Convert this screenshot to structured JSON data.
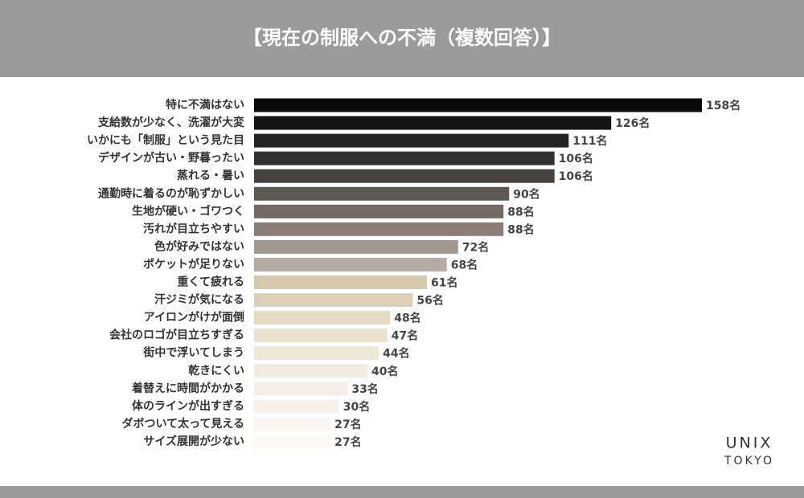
{
  "chart_data": {
    "type": "bar",
    "orientation": "horizontal",
    "title": "【現在の制服への不満（複数回答）】",
    "categories": [
      "特に不満はない",
      "支給数が少なく、洗濯が大変",
      "いかにも「制服」という見た目",
      "デザインが古い・野暮ったい",
      "蒸れる・暑い",
      "通勤時に着るのが恥ずかしい",
      "生地が硬い・ゴワつく",
      "汚れが目立ちやすい",
      "色が好みではない",
      "ポケットが足りない",
      "重くて疲れる",
      "汗ジミが気になる",
      "アイロンがけが面倒",
      "会社のロゴが目立ちすぎる",
      "街中で浮いてしまう",
      "乾きにくい",
      "着替えに時間がかかる",
      "体のラインが出すぎる",
      "ダボついて太って見える",
      "サイズ展開が少ない"
    ],
    "values": [
      158,
      126,
      111,
      106,
      106,
      90,
      88,
      88,
      72,
      68,
      61,
      56,
      48,
      47,
      44,
      40,
      33,
      30,
      27,
      27
    ],
    "value_labels": [
      "158名",
      "126名",
      "111名",
      "106名",
      "106名",
      "90名",
      "88名",
      "88名",
      "72名",
      "68名",
      "61名",
      "56名",
      "48名",
      "47名",
      "44名",
      "40名",
      "33名",
      "30名",
      "27名",
      "27名"
    ],
    "colors": [
      "#0a0a0a",
      "#151515",
      "#232323",
      "#323131",
      "#464141",
      "#5f5755",
      "#736966",
      "#8a7d76",
      "#a19690",
      "#b6aba4",
      "#d6c8ad",
      "#dccfb3",
      "#e4dac2",
      "#e9e2cc",
      "#ede7d6",
      "#f1ece0",
      "#f6ece8",
      "#f9f0ea",
      "#fbf5f2",
      "#fcf8f6"
    ]
  },
  "logo": {
    "line1": "UNIX",
    "line2": "TOKYO"
  }
}
